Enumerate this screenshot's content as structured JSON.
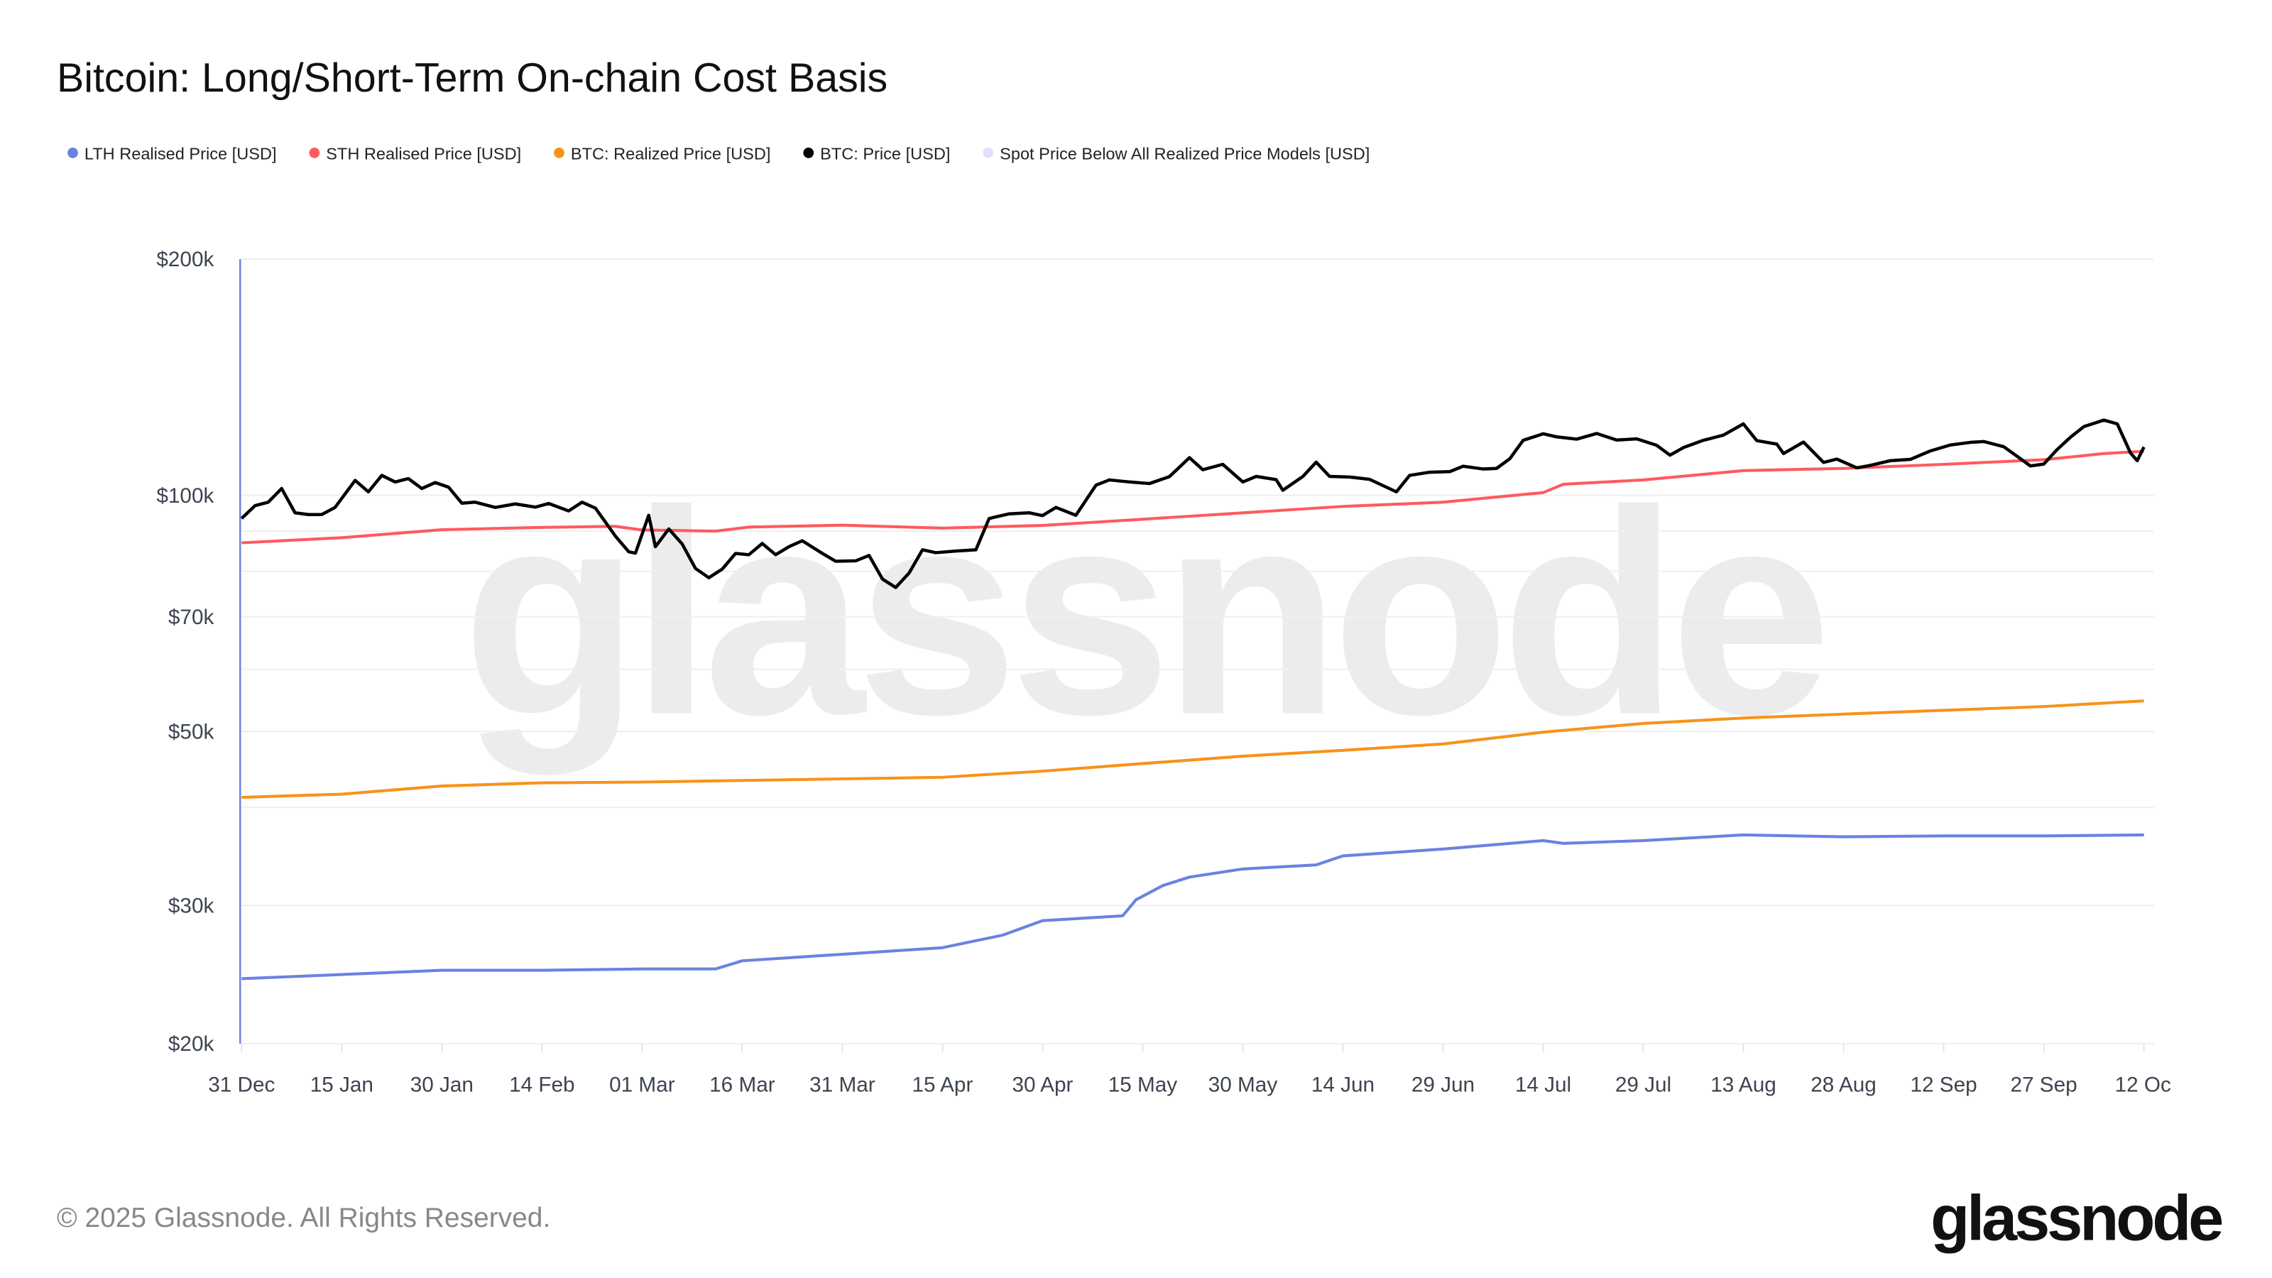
{
  "title": "Bitcoin: Long/Short-Term On-chain Cost Basis",
  "footer": "© 2025 Glassnode. All Rights Reserved.",
  "logo": "glassnode",
  "watermark": "glassnode",
  "chart_data": {
    "type": "line",
    "title": "Bitcoin: Long/Short-Term On-chain Cost Basis",
    "yscale": "log",
    "ylim": [
      20000,
      200000
    ],
    "xlim": [
      "2024-12-31",
      "2025-10-12"
    ],
    "grid": true,
    "legend_position": "top-left",
    "y_ticks": [
      {
        "value": 200000,
        "label": "$200k"
      },
      {
        "value": 100000,
        "label": "$100k"
      },
      {
        "value": 70000,
        "label": "$70k"
      },
      {
        "value": 50000,
        "label": "$50k"
      },
      {
        "value": 30000,
        "label": "$30k"
      },
      {
        "value": 20000,
        "label": "$20k"
      }
    ],
    "y_gridlines": [
      200000,
      100000,
      90000,
      80000,
      70000,
      60000,
      50000,
      40000,
      30000,
      20000
    ],
    "x_ticks": [
      {
        "date": "2024-12-31",
        "label": "31 Dec"
      },
      {
        "date": "2025-01-15",
        "label": "15 Jan"
      },
      {
        "date": "2025-01-30",
        "label": "30 Jan"
      },
      {
        "date": "2025-02-14",
        "label": "14 Feb"
      },
      {
        "date": "2025-03-01",
        "label": "01 Mar"
      },
      {
        "date": "2025-03-16",
        "label": "16 Mar"
      },
      {
        "date": "2025-03-31",
        "label": "31 Mar"
      },
      {
        "date": "2025-04-15",
        "label": "15 Apr"
      },
      {
        "date": "2025-04-30",
        "label": "30 Apr"
      },
      {
        "date": "2025-05-15",
        "label": "15 May"
      },
      {
        "date": "2025-05-30",
        "label": "30 May"
      },
      {
        "date": "2025-06-14",
        "label": "14 Jun"
      },
      {
        "date": "2025-06-29",
        "label": "29 Jun"
      },
      {
        "date": "2025-07-14",
        "label": "14 Jul"
      },
      {
        "date": "2025-07-29",
        "label": "29 Jul"
      },
      {
        "date": "2025-08-13",
        "label": "13 Aug"
      },
      {
        "date": "2025-08-28",
        "label": "28 Aug"
      },
      {
        "date": "2025-09-12",
        "label": "12 Sep"
      },
      {
        "date": "2025-09-27",
        "label": "27 Sep"
      },
      {
        "date": "2025-10-12",
        "label": "12 Oc"
      }
    ],
    "series": [
      {
        "name": "LTH Realised Price [USD]",
        "color": "#6a82e0",
        "points": [
          [
            "2024-12-31",
            24200
          ],
          [
            "2025-01-15",
            24500
          ],
          [
            "2025-01-30",
            24800
          ],
          [
            "2025-02-14",
            24800
          ],
          [
            "2025-03-01",
            24900
          ],
          [
            "2025-03-12",
            24900
          ],
          [
            "2025-03-16",
            25500
          ],
          [
            "2025-03-31",
            26000
          ],
          [
            "2025-04-15",
            26500
          ],
          [
            "2025-04-24",
            27500
          ],
          [
            "2025-04-30",
            28700
          ],
          [
            "2025-05-12",
            29100
          ],
          [
            "2025-05-14",
            30500
          ],
          [
            "2025-05-18",
            31800
          ],
          [
            "2025-05-22",
            32600
          ],
          [
            "2025-05-30",
            33400
          ],
          [
            "2025-06-10",
            33800
          ],
          [
            "2025-06-14",
            34700
          ],
          [
            "2025-06-29",
            35400
          ],
          [
            "2025-07-14",
            36300
          ],
          [
            "2025-07-17",
            36000
          ],
          [
            "2025-07-29",
            36300
          ],
          [
            "2025-08-13",
            36900
          ],
          [
            "2025-08-28",
            36700
          ],
          [
            "2025-09-12",
            36800
          ],
          [
            "2025-09-27",
            36800
          ],
          [
            "2025-10-12",
            36900
          ]
        ]
      },
      {
        "name": "STH Realised Price [USD]",
        "color": "#ff5a5f",
        "points": [
          [
            "2024-12-31",
            87000
          ],
          [
            "2025-01-15",
            88300
          ],
          [
            "2025-01-30",
            90400
          ],
          [
            "2025-02-14",
            91000
          ],
          [
            "2025-02-25",
            91300
          ],
          [
            "2025-03-01",
            90300
          ],
          [
            "2025-03-12",
            90000
          ],
          [
            "2025-03-17",
            91100
          ],
          [
            "2025-03-31",
            91600
          ],
          [
            "2025-04-15",
            90800
          ],
          [
            "2025-04-30",
            91500
          ],
          [
            "2025-05-15",
            93200
          ],
          [
            "2025-05-30",
            95000
          ],
          [
            "2025-06-14",
            96800
          ],
          [
            "2025-06-29",
            98000
          ],
          [
            "2025-07-14",
            100800
          ],
          [
            "2025-07-17",
            103300
          ],
          [
            "2025-07-29",
            104600
          ],
          [
            "2025-08-13",
            107500
          ],
          [
            "2025-08-28",
            108200
          ],
          [
            "2025-09-12",
            109500
          ],
          [
            "2025-09-27",
            111000
          ],
          [
            "2025-10-06",
            113000
          ],
          [
            "2025-10-12",
            113800
          ]
        ]
      },
      {
        "name": "BTC: Realized Price [USD]",
        "color": "#f7931a",
        "points": [
          [
            "2024-12-31",
            41200
          ],
          [
            "2025-01-15",
            41600
          ],
          [
            "2025-01-30",
            42600
          ],
          [
            "2025-02-14",
            43000
          ],
          [
            "2025-03-01",
            43100
          ],
          [
            "2025-03-16",
            43300
          ],
          [
            "2025-03-31",
            43500
          ],
          [
            "2025-04-15",
            43700
          ],
          [
            "2025-04-30",
            44500
          ],
          [
            "2025-05-15",
            45500
          ],
          [
            "2025-05-30",
            46500
          ],
          [
            "2025-06-14",
            47300
          ],
          [
            "2025-06-29",
            48200
          ],
          [
            "2025-07-14",
            49900
          ],
          [
            "2025-07-29",
            51200
          ],
          [
            "2025-08-13",
            52000
          ],
          [
            "2025-08-28",
            52600
          ],
          [
            "2025-09-12",
            53200
          ],
          [
            "2025-09-27",
            53800
          ],
          [
            "2025-10-12",
            54700
          ]
        ]
      },
      {
        "name": "BTC: Price [USD]",
        "color": "#000000",
        "points": [
          [
            "2024-12-31",
            93400
          ],
          [
            "2025-01-02",
            97000
          ],
          [
            "2025-01-04",
            98000
          ],
          [
            "2025-01-06",
            102000
          ],
          [
            "2025-01-08",
            95000
          ],
          [
            "2025-01-10",
            94500
          ],
          [
            "2025-01-12",
            94500
          ],
          [
            "2025-01-14",
            96500
          ],
          [
            "2025-01-17",
            104500
          ],
          [
            "2025-01-19",
            101000
          ],
          [
            "2025-01-21",
            106000
          ],
          [
            "2025-01-23",
            104000
          ],
          [
            "2025-01-25",
            105000
          ],
          [
            "2025-01-27",
            102000
          ],
          [
            "2025-01-29",
            103800
          ],
          [
            "2025-01-31",
            102400
          ],
          [
            "2025-02-02",
            97700
          ],
          [
            "2025-02-04",
            98000
          ],
          [
            "2025-02-07",
            96500
          ],
          [
            "2025-02-10",
            97500
          ],
          [
            "2025-02-13",
            96600
          ],
          [
            "2025-02-15",
            97600
          ],
          [
            "2025-02-18",
            95500
          ],
          [
            "2025-02-20",
            98000
          ],
          [
            "2025-02-22",
            96300
          ],
          [
            "2025-02-25",
            88700
          ],
          [
            "2025-02-27",
            84700
          ],
          [
            "2025-02-28",
            84400
          ],
          [
            "2025-03-02",
            94300
          ],
          [
            "2025-03-03",
            86000
          ],
          [
            "2025-03-05",
            90600
          ],
          [
            "2025-03-07",
            86700
          ],
          [
            "2025-03-09",
            80700
          ],
          [
            "2025-03-11",
            78500
          ],
          [
            "2025-03-13",
            80500
          ],
          [
            "2025-03-15",
            84300
          ],
          [
            "2025-03-17",
            84000
          ],
          [
            "2025-03-19",
            86800
          ],
          [
            "2025-03-21",
            84000
          ],
          [
            "2025-03-23",
            86000
          ],
          [
            "2025-03-25",
            87500
          ],
          [
            "2025-03-28",
            84300
          ],
          [
            "2025-03-30",
            82400
          ],
          [
            "2025-04-02",
            82500
          ],
          [
            "2025-04-04",
            83800
          ],
          [
            "2025-04-06",
            78200
          ],
          [
            "2025-04-08",
            76300
          ],
          [
            "2025-04-10",
            79600
          ],
          [
            "2025-04-12",
            85200
          ],
          [
            "2025-04-14",
            84500
          ],
          [
            "2025-04-17",
            84900
          ],
          [
            "2025-04-20",
            85200
          ],
          [
            "2025-04-22",
            93400
          ],
          [
            "2025-04-25",
            94700
          ],
          [
            "2025-04-28",
            95000
          ],
          [
            "2025-04-30",
            94200
          ],
          [
            "2025-05-02",
            96500
          ],
          [
            "2025-05-05",
            94300
          ],
          [
            "2025-05-08",
            103000
          ],
          [
            "2025-05-10",
            104600
          ],
          [
            "2025-05-13",
            104000
          ],
          [
            "2025-05-16",
            103500
          ],
          [
            "2025-05-19",
            105600
          ],
          [
            "2025-05-22",
            111700
          ],
          [
            "2025-05-24",
            107800
          ],
          [
            "2025-05-27",
            109500
          ],
          [
            "2025-05-30",
            104000
          ],
          [
            "2025-06-01",
            105700
          ],
          [
            "2025-06-04",
            104700
          ],
          [
            "2025-06-05",
            101500
          ],
          [
            "2025-06-08",
            105700
          ],
          [
            "2025-06-10",
            110200
          ],
          [
            "2025-06-12",
            105700
          ],
          [
            "2025-06-15",
            105500
          ],
          [
            "2025-06-18",
            104800
          ],
          [
            "2025-06-22",
            101000
          ],
          [
            "2025-06-24",
            106000
          ],
          [
            "2025-06-27",
            107000
          ],
          [
            "2025-06-30",
            107200
          ],
          [
            "2025-07-02",
            108900
          ],
          [
            "2025-07-05",
            108000
          ],
          [
            "2025-07-07",
            108200
          ],
          [
            "2025-07-09",
            111300
          ],
          [
            "2025-07-11",
            117500
          ],
          [
            "2025-07-14",
            119800
          ],
          [
            "2025-07-16",
            118700
          ],
          [
            "2025-07-19",
            117900
          ],
          [
            "2025-07-22",
            119900
          ],
          [
            "2025-07-25",
            117600
          ],
          [
            "2025-07-28",
            118000
          ],
          [
            "2025-07-31",
            115800
          ],
          [
            "2025-08-02",
            112500
          ],
          [
            "2025-08-04",
            115000
          ],
          [
            "2025-08-07",
            117500
          ],
          [
            "2025-08-10",
            119300
          ],
          [
            "2025-08-13",
            123300
          ],
          [
            "2025-08-15",
            117400
          ],
          [
            "2025-08-18",
            116200
          ],
          [
            "2025-08-19",
            113000
          ],
          [
            "2025-08-22",
            116900
          ],
          [
            "2025-08-25",
            110100
          ],
          [
            "2025-08-27",
            111200
          ],
          [
            "2025-08-30",
            108400
          ],
          [
            "2025-09-01",
            109200
          ],
          [
            "2025-09-04",
            110700
          ],
          [
            "2025-09-07",
            111100
          ],
          [
            "2025-09-10",
            113900
          ],
          [
            "2025-09-13",
            115900
          ],
          [
            "2025-09-16",
            116800
          ],
          [
            "2025-09-18",
            117100
          ],
          [
            "2025-09-21",
            115300
          ],
          [
            "2025-09-23",
            112100
          ],
          [
            "2025-09-25",
            109000
          ],
          [
            "2025-09-27",
            109600
          ],
          [
            "2025-09-29",
            114400
          ],
          [
            "2025-10-01",
            118600
          ],
          [
            "2025-10-03",
            122300
          ],
          [
            "2025-10-06",
            124700
          ],
          [
            "2025-10-08",
            123300
          ],
          [
            "2025-10-10",
            113200
          ],
          [
            "2025-10-11",
            110700
          ],
          [
            "2025-10-12",
            115200
          ]
        ]
      },
      {
        "name": "Spot Price Below All Realized Price Models [USD]",
        "color": "#e6dcff",
        "points": []
      }
    ]
  }
}
